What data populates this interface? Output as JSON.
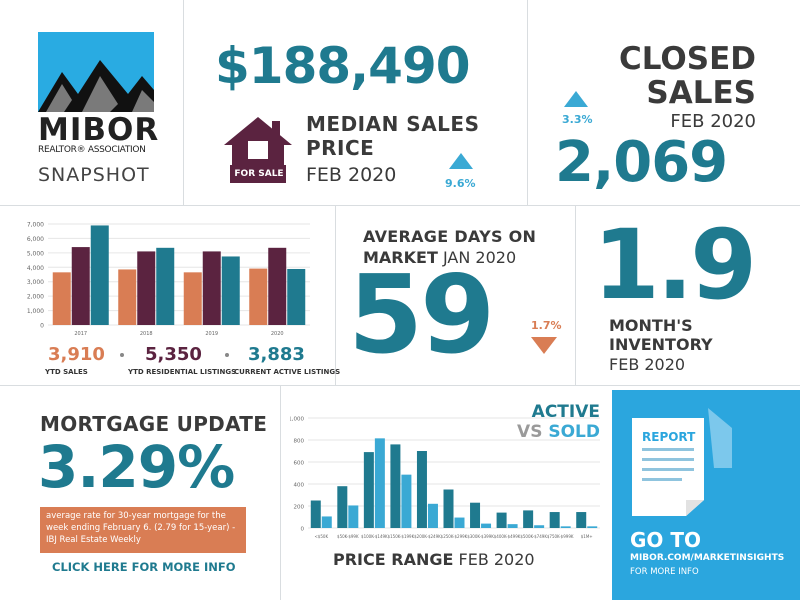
{
  "logo": {
    "brand": "MIBOR",
    "sub": "REALTOR® ASSOCIATION",
    "tag": "SNAPSHOT"
  },
  "median": {
    "value": "$188,490",
    "label_line1": "MEDIAN SALES",
    "label_line2": "PRICE",
    "period": "FEB 2020",
    "change": "9.6%",
    "sign": "FOR SALE"
  },
  "closed": {
    "label_line1": "CLOSED",
    "label_line2": "SALES",
    "period": "FEB 2020",
    "value": "2,069",
    "change": "3.3%"
  },
  "days": {
    "label_line1": "AVERAGE DAYS ON",
    "label_line2": "MARKET",
    "period": "JAN 2020",
    "value": "59",
    "change": "1.7%"
  },
  "inventory": {
    "value": "1.9",
    "label_line1": "MONTH'S",
    "label_line2": "INVENTORY",
    "period": "FEB 2020"
  },
  "ytd": {
    "sales_value": "3,910",
    "sales_label": "YTD SALES",
    "listings_value": "5,350",
    "listings_label": "YTD RESIDENTIAL LISTINGS",
    "active_value": "3,883",
    "active_label": "CURRENT ACTIVE LISTINGS"
  },
  "mortgage": {
    "title": "MORTGAGE UPDATE",
    "rate": "3.29%",
    "note": "average rate for 30-year mortgage for the week ending February 6. (2.79 for 15-year) - IBJ Real Estate Weekly",
    "link": "CLICK HERE FOR MORE INFO"
  },
  "active_sold": {
    "title_active": "ACTIVE",
    "title_vs": "VS",
    "title_sold": "SOLD",
    "footer_bold": "PRICE RANGE",
    "footer_period": "FEB 2020"
  },
  "report": {
    "doc_label": "REPORT",
    "goto": "GO TO",
    "url": "MIBOR.COM/MARKETINSIGHTS",
    "more": "FOR MORE INFO"
  },
  "colors": {
    "teal": "#1f7a8f",
    "light_blue": "#3aa9d4",
    "orange": "#d97d54",
    "maroon": "#5b2340",
    "panel_blue": "#2ba6de"
  },
  "chart_data": [
    {
      "type": "bar",
      "categories": [
        "2017",
        "2018",
        "2019",
        "2020"
      ],
      "series": [
        {
          "color": "#d97d54",
          "values": [
            3650,
            3850,
            3650,
            3910
          ]
        },
        {
          "color": "#5b2340",
          "values": [
            5400,
            5100,
            5100,
            5350
          ]
        },
        {
          "color": "#1f7a8f",
          "values": [
            6900,
            5350,
            4750,
            3883
          ]
        }
      ],
      "yticks": [
        "0",
        "1,000",
        "2,000",
        "3,000",
        "4,000",
        "5,000",
        "6,000",
        "7,000"
      ],
      "ylim": [
        0,
        7000
      ]
    },
    {
      "type": "bar",
      "categories": [
        "<$50K",
        "$50K-$99K",
        "$100K-$149K",
        "$150K-$199K",
        "$200K-$249K",
        "$250K-$299K",
        "$300K-$399K",
        "$400K-$499K",
        "$500K-$749K",
        "$750K-$999K",
        "$1M+"
      ],
      "series": [
        {
          "color": "#1f7a8f",
          "values": [
            250,
            380,
            690,
            760,
            700,
            350,
            230,
            140,
            160,
            145,
            145
          ]
        },
        {
          "color": "#3aa9d4",
          "values": [
            105,
            205,
            815,
            485,
            220,
            95,
            40,
            35,
            25,
            15,
            15
          ]
        }
      ],
      "yticks": [
        "0",
        "200",
        "400",
        "600",
        "800",
        "1,000"
      ],
      "ylim": [
        0,
        1000
      ]
    }
  ]
}
